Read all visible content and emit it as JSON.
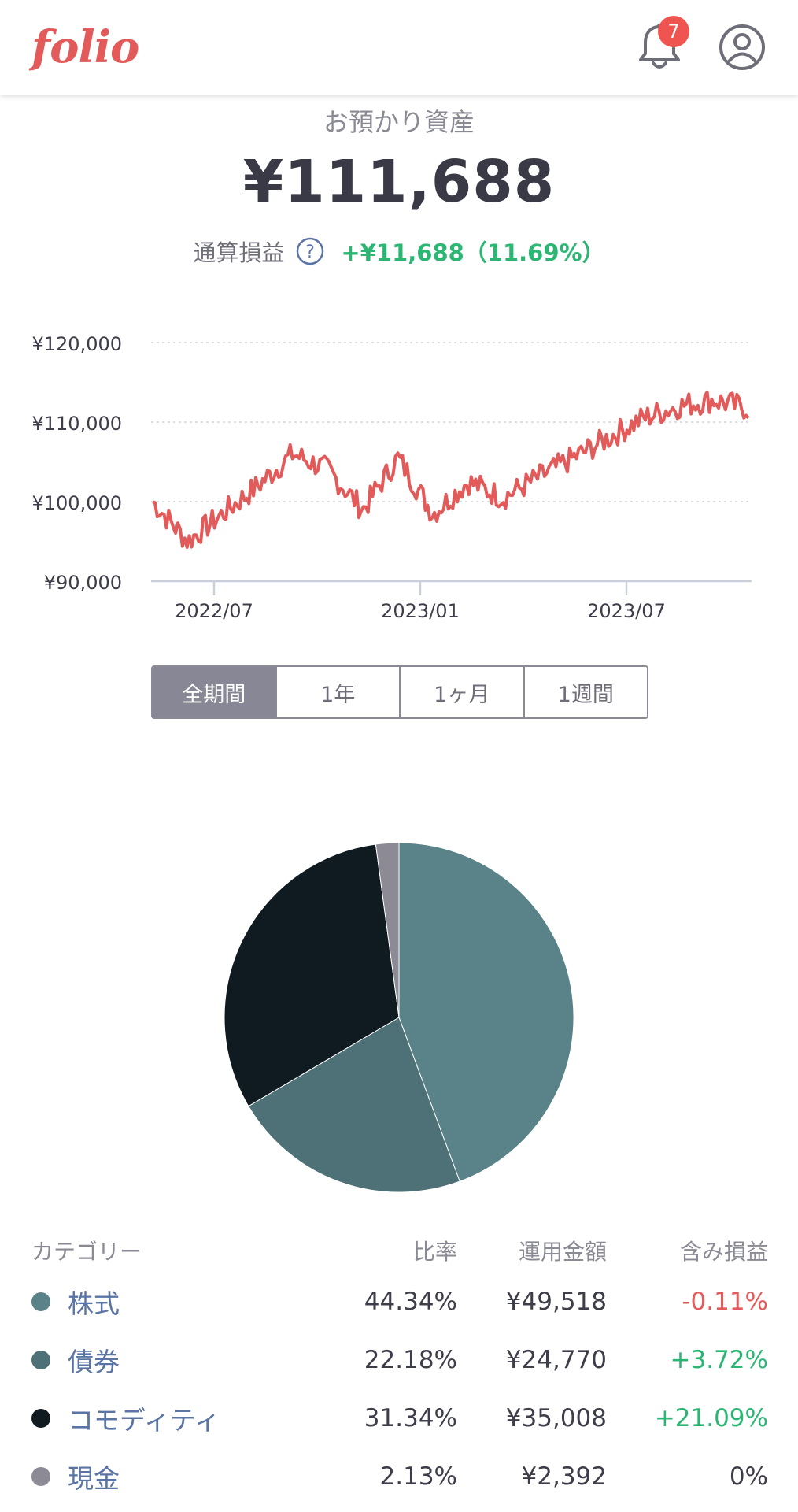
{
  "header": {
    "logo": "folio",
    "notification_count": "7",
    "icons": [
      "bell-icon",
      "account-icon"
    ]
  },
  "summary": {
    "label": "お預かり資産",
    "total": "¥111,688",
    "pl_label": "通算損益",
    "pl_value": "+¥11,688（11.69%）",
    "help_icon": "help-icon"
  },
  "chart_data": [
    {
      "type": "line",
      "x_tick_labels": [
        "2022/07",
        "2023/01",
        "2023/07"
      ],
      "y_tick_labels": [
        "¥120,000",
        "¥110,000",
        "¥100,000",
        "¥90,000"
      ],
      "ylim": [
        90000,
        120000
      ],
      "grid": true,
      "color": "#e35a5a",
      "x": [
        "2022/05",
        "2022/06",
        "2022/07",
        "2022/08",
        "2022/09",
        "2022/10",
        "2022/11",
        "2022/12",
        "2023/01",
        "2023/02",
        "2023/03",
        "2023/04",
        "2023/05",
        "2023/06",
        "2023/07",
        "2023/08",
        "2023/09",
        "2023/10"
      ],
      "values": [
        100000,
        95000,
        98500,
        102000,
        106000,
        104000,
        99000,
        105500,
        98500,
        102500,
        100500,
        103000,
        105500,
        108000,
        110500,
        112000,
        112800,
        111700
      ]
    },
    {
      "type": "pie",
      "labels": [
        "株式",
        "債券",
        "コモディティ",
        "現金"
      ],
      "values": [
        44.34,
        22.18,
        31.34,
        2.13
      ],
      "colors": [
        "#5a8289",
        "#4e7178",
        "#0f1b20",
        "#8b8a95"
      ]
    }
  ],
  "tabs": [
    {
      "label": "全期間",
      "active": true
    },
    {
      "label": "1年",
      "active": false
    },
    {
      "label": "1ヶ月",
      "active": false
    },
    {
      "label": "1週間",
      "active": false
    }
  ],
  "table": {
    "headers": {
      "category": "カテゴリー",
      "ratio": "比率",
      "amount": "運用金額",
      "pl": "含み損益"
    },
    "rows": [
      {
        "category": "株式",
        "ratio": "44.34%",
        "amount": "¥49,518",
        "pl": "-0.11%",
        "color": "#5a8289",
        "pl_class": "neg"
      },
      {
        "category": "債券",
        "ratio": "22.18%",
        "amount": "¥24,770",
        "pl": "+3.72%",
        "color": "#4e7178",
        "pl_class": "pos"
      },
      {
        "category": "コモディティ",
        "ratio": "31.34%",
        "amount": "¥35,008",
        "pl": "+21.09%",
        "color": "#0f1b20",
        "pl_class": "pos"
      },
      {
        "category": "現金",
        "ratio": "2.13%",
        "amount": "¥2,392",
        "pl": "0%",
        "color": "#8b8a95",
        "pl_class": "neutral"
      }
    ]
  }
}
